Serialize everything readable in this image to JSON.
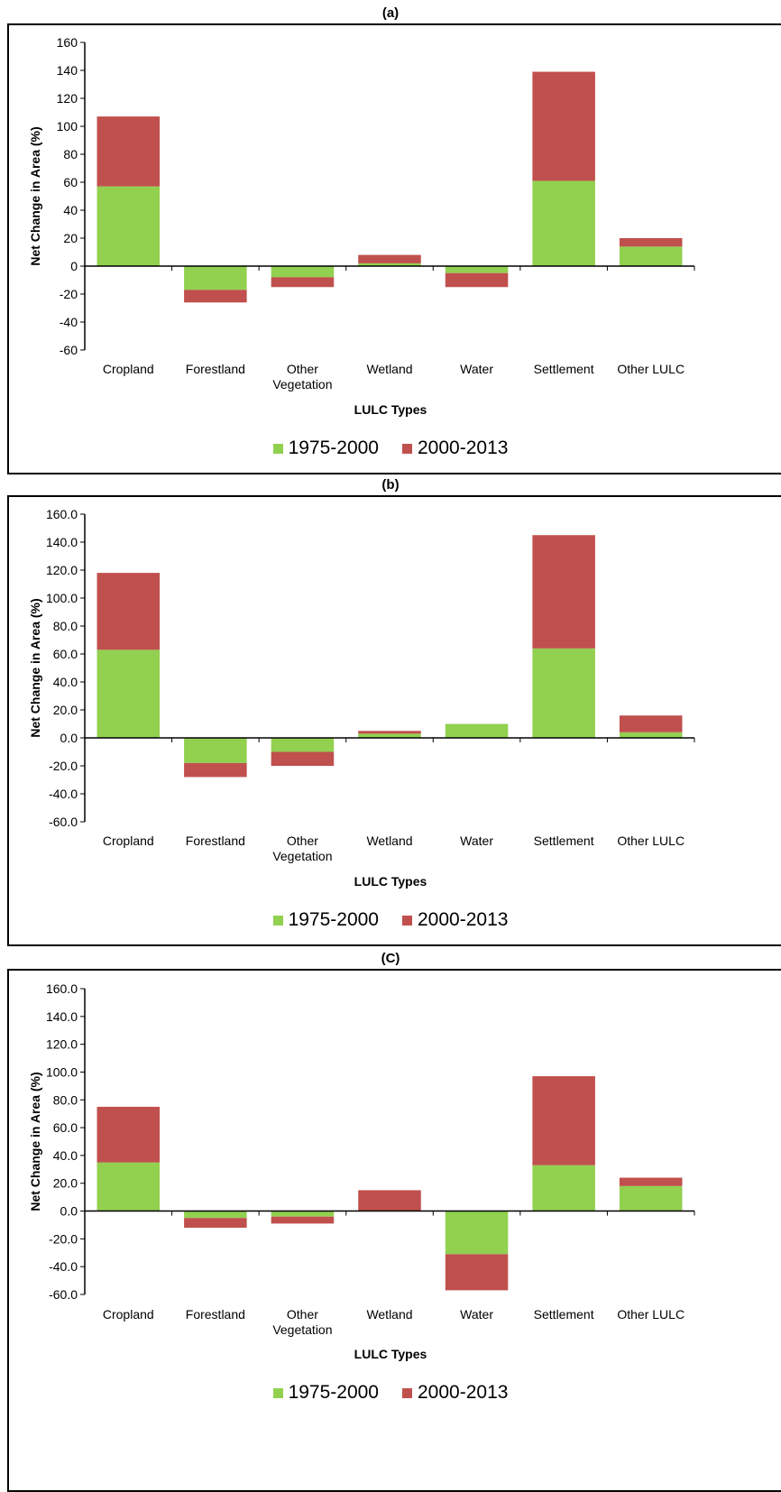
{
  "colors": {
    "s1": "#92d050",
    "s2": "#c0504d"
  },
  "chart_data": [
    {
      "type": "bar",
      "stacked": true,
      "title": "(a)",
      "xlabel": "LULC Types",
      "ylabel": "Net Change in Area (%)",
      "ylim": [
        -60,
        160
      ],
      "yticks": [
        "160",
        "140",
        "120",
        "100",
        "80",
        "60",
        "40",
        "20",
        "0",
        "-20",
        "-40",
        "-60"
      ],
      "categories": [
        "Cropland",
        "Forestland",
        "Other Vegetation",
        "Wetland",
        "Water",
        "Settlement",
        "Other LULC"
      ],
      "series": [
        {
          "name": "1975-2000",
          "values": [
            57,
            -17,
            -8,
            2,
            -5,
            61,
            14
          ]
        },
        {
          "name": "2000-2013",
          "values": [
            50,
            -9,
            -7,
            6,
            -10,
            78,
            6
          ]
        }
      ],
      "legend": "bottom"
    },
    {
      "type": "bar",
      "stacked": true,
      "title": "(b)",
      "xlabel": "LULC Types",
      "ylabel": "Net Change in Area (%)",
      "ylim": [
        -60,
        160
      ],
      "yticks": [
        "160.0",
        "140.0",
        "120.0",
        "100.0",
        "80.0",
        "60.0",
        "40.0",
        "20.0",
        "0.0",
        "-20.0",
        "-40.0",
        "-60.0"
      ],
      "categories": [
        "Cropland",
        "Forestland",
        "Other Vegetation",
        "Wetland",
        "Water",
        "Settlement",
        "Other LULC"
      ],
      "series": [
        {
          "name": "1975-2000",
          "values": [
            63,
            -18,
            -10,
            3,
            10,
            64,
            4
          ]
        },
        {
          "name": "2000-2013",
          "values": [
            55,
            -10,
            -10,
            2,
            0,
            81,
            12
          ]
        }
      ],
      "legend": "bottom"
    },
    {
      "type": "bar",
      "stacked": true,
      "title": "(C)",
      "xlabel": "LULC Types",
      "ylabel": "Net Change in Area (%)",
      "ylim": [
        -60,
        160
      ],
      "yticks": [
        "160.0",
        "140.0",
        "120.0",
        "100.0",
        "80.0",
        "60.0",
        "40.0",
        "20.0",
        "0.0",
        "-20.0",
        "-40.0",
        "-60.0"
      ],
      "categories": [
        "Cropland",
        "Forestland",
        "Other Vegetation",
        "Wetland",
        "Water",
        "Settlement",
        "Other LULC"
      ],
      "series": [
        {
          "name": "1975-2000",
          "values": [
            35,
            -5,
            -4,
            0,
            -31,
            33,
            18
          ]
        },
        {
          "name": "2000-2013",
          "values": [
            40,
            -7,
            -5,
            15,
            -26,
            64,
            6
          ]
        }
      ],
      "legend": "bottom"
    }
  ]
}
